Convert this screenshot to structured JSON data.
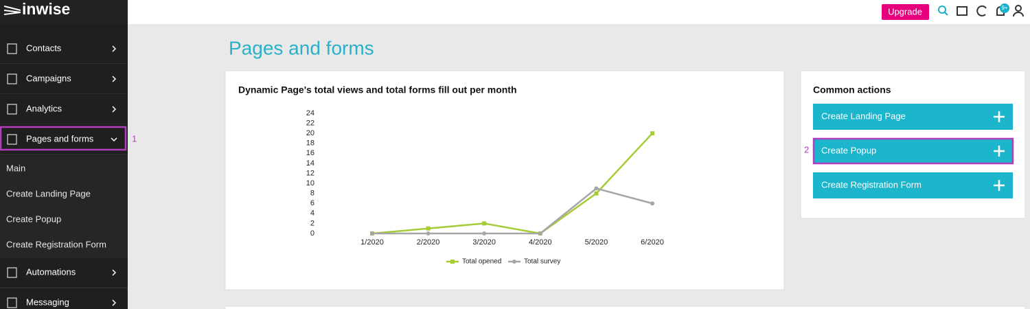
{
  "header": {
    "logo": "inwise",
    "upgrade": "Upgrade",
    "notification_badge": "9+"
  },
  "sidebar": {
    "menu": [
      "Contacts",
      "Campaigns",
      "Analytics",
      "Pages and forms"
    ],
    "submenu": [
      "Main",
      "Create Landing Page",
      "Create Popup",
      "Create Registration Form"
    ],
    "menu_after": [
      "Automations",
      "Messaging"
    ]
  },
  "page_title": "Pages and forms",
  "annotations": [
    "1",
    "2"
  ],
  "chart_data": {
    "type": "line",
    "title": "Dynamic Page's total views and total forms fill out per month",
    "categories": [
      "1/2020",
      "2/2020",
      "3/2020",
      "4/2020",
      "5/2020",
      "6/2020"
    ],
    "series": [
      {
        "name": "Total opened",
        "color": "#a4cc35",
        "values": [
          0,
          1,
          2,
          0,
          8,
          20
        ]
      },
      {
        "name": "Total survey",
        "color": "#a6a6a6",
        "values": [
          0,
          0,
          0,
          0,
          9,
          6
        ]
      }
    ],
    "ylim": [
      0,
      24
    ],
    "yticks": [
      0,
      2,
      4,
      6,
      8,
      10,
      12,
      14,
      16,
      18,
      20,
      22,
      24
    ],
    "grid": false,
    "legend": "bottom"
  },
  "common_actions": {
    "title": "Common actions",
    "buttons": [
      "Create Landing Page",
      "Create Popup",
      "Create Registration Form"
    ]
  }
}
